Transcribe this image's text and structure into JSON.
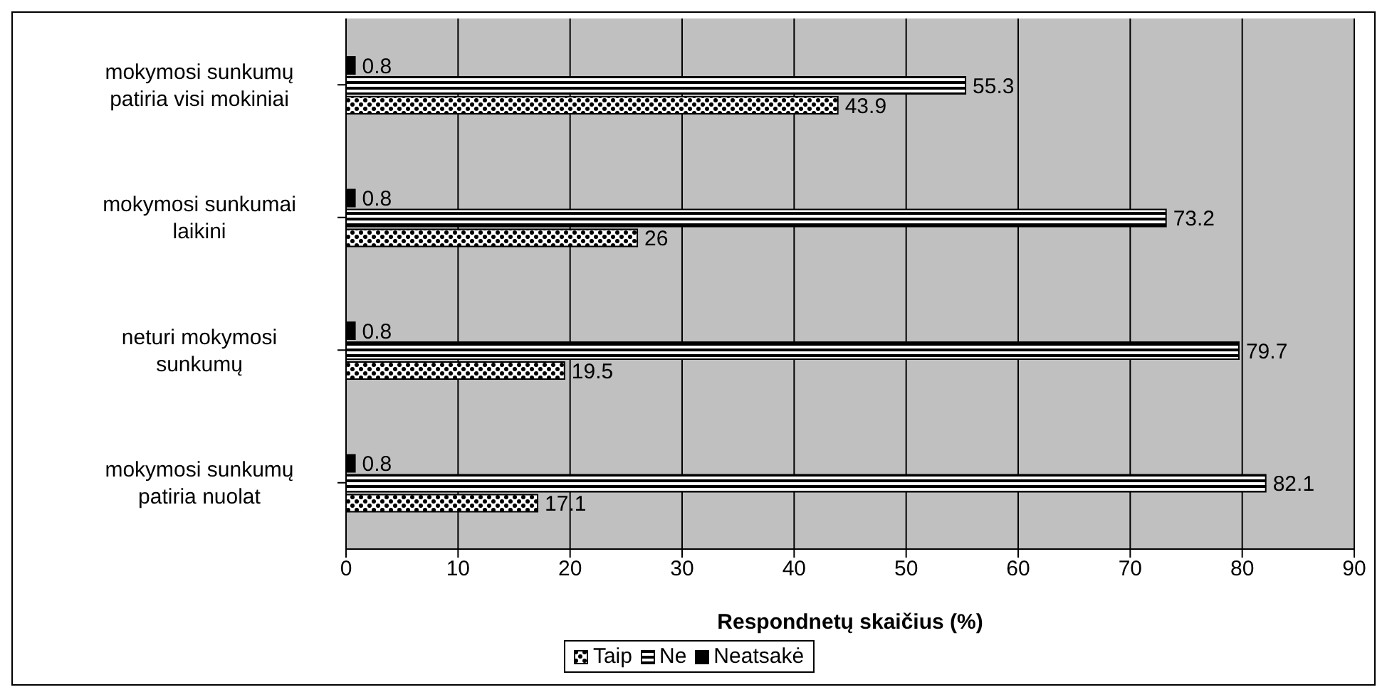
{
  "chart_data": {
    "type": "bar",
    "orientation": "horizontal",
    "categories": [
      "mokymosi sunkumų patiria visi mokiniai",
      "mokymosi sunkumai laikini",
      "neturi mokymosi sunkumų",
      "mokymosi sunkumų patiria nuolat"
    ],
    "series": [
      {
        "name": "Taip",
        "color": "#000000",
        "values": [
          43.9,
          26,
          19.5,
          17.1
        ]
      },
      {
        "name": "Ne",
        "color": "#000000",
        "values": [
          55.3,
          73.2,
          79.7,
          82.1
        ]
      },
      {
        "name": "Neatsakė",
        "color": "#000000",
        "values": [
          0.8,
          0.8,
          0.8,
          0.8
        ]
      }
    ],
    "xlim": [
      0,
      90
    ],
    "xticks": [
      0,
      10,
      20,
      30,
      40,
      50,
      60,
      70,
      80,
      90
    ],
    "xlabel": "Respondnetų skaičius (%)",
    "grid": "x",
    "legend": "bottom",
    "data_labels": true
  }
}
